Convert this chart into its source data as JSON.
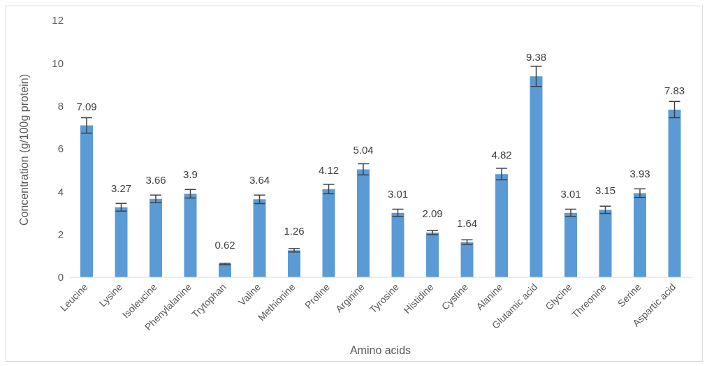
{
  "chart_data": {
    "type": "bar",
    "xlabel": "Amino acids",
    "ylabel": "Concentration (g/100g protein)",
    "categories": [
      "Leucine",
      "Lysine",
      "Isoleucine",
      "Phenylalanine",
      "Trytophan",
      "Valine",
      "Methionine",
      "Proline",
      "Arginine",
      "Tyrosine",
      "Histidine",
      "Cystine",
      "Alanine",
      "Glutamic acid",
      "Glycine",
      "Threonine",
      "Serine",
      "Aspartic acid"
    ],
    "values": [
      7.09,
      3.27,
      3.66,
      3.9,
      0.62,
      3.64,
      1.26,
      4.12,
      5.04,
      3.01,
      2.09,
      1.64,
      4.82,
      9.38,
      3.01,
      3.15,
      3.93,
      7.83
    ],
    "errors": [
      0.36,
      0.18,
      0.18,
      0.2,
      0.03,
      0.2,
      0.08,
      0.22,
      0.26,
      0.17,
      0.1,
      0.11,
      0.27,
      0.47,
      0.17,
      0.17,
      0.2,
      0.38
    ],
    "color": "#5b9bd5",
    "ylim": [
      0,
      12
    ],
    "yticks": [
      0,
      2,
      4,
      6,
      8,
      10,
      12
    ],
    "grid": false,
    "data_labels": true,
    "legend": false
  }
}
